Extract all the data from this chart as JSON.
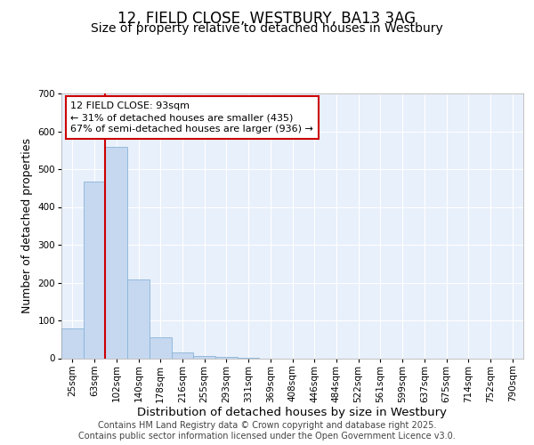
{
  "title": "12, FIELD CLOSE, WESTBURY, BA13 3AG",
  "subtitle": "Size of property relative to detached houses in Westbury",
  "xlabel": "Distribution of detached houses by size in Westbury",
  "ylabel": "Number of detached properties",
  "categories": [
    "25sqm",
    "63sqm",
    "102sqm",
    "140sqm",
    "178sqm",
    "216sqm",
    "255sqm",
    "293sqm",
    "331sqm",
    "369sqm",
    "408sqm",
    "446sqm",
    "484sqm",
    "522sqm",
    "561sqm",
    "599sqm",
    "637sqm",
    "675sqm",
    "714sqm",
    "752sqm",
    "790sqm"
  ],
  "values": [
    78,
    467,
    560,
    208,
    55,
    15,
    5,
    4,
    2,
    0,
    0,
    0,
    0,
    0,
    0,
    0,
    0,
    0,
    0,
    0,
    0
  ],
  "bar_color": "#c5d8f0",
  "bar_edge_color": "#8ab4d8",
  "background_color": "#e8f0fb",
  "grid_color": "#ffffff",
  "annotation_text": "12 FIELD CLOSE: 93sqm\n← 31% of detached houses are smaller (435)\n67% of semi-detached houses are larger (936) →",
  "annotation_box_color": "#ffffff",
  "annotation_box_edge": "#cc0000",
  "red_line_color": "#cc0000",
  "red_line_index": 2,
  "ylim": [
    0,
    700
  ],
  "yticks": [
    0,
    100,
    200,
    300,
    400,
    500,
    600,
    700
  ],
  "footer": "Contains HM Land Registry data © Crown copyright and database right 2025.\nContains public sector information licensed under the Open Government Licence v3.0.",
  "title_fontsize": 12,
  "subtitle_fontsize": 10,
  "xlabel_fontsize": 9.5,
  "ylabel_fontsize": 9,
  "tick_fontsize": 7.5,
  "footer_fontsize": 7,
  "annot_fontsize": 8
}
